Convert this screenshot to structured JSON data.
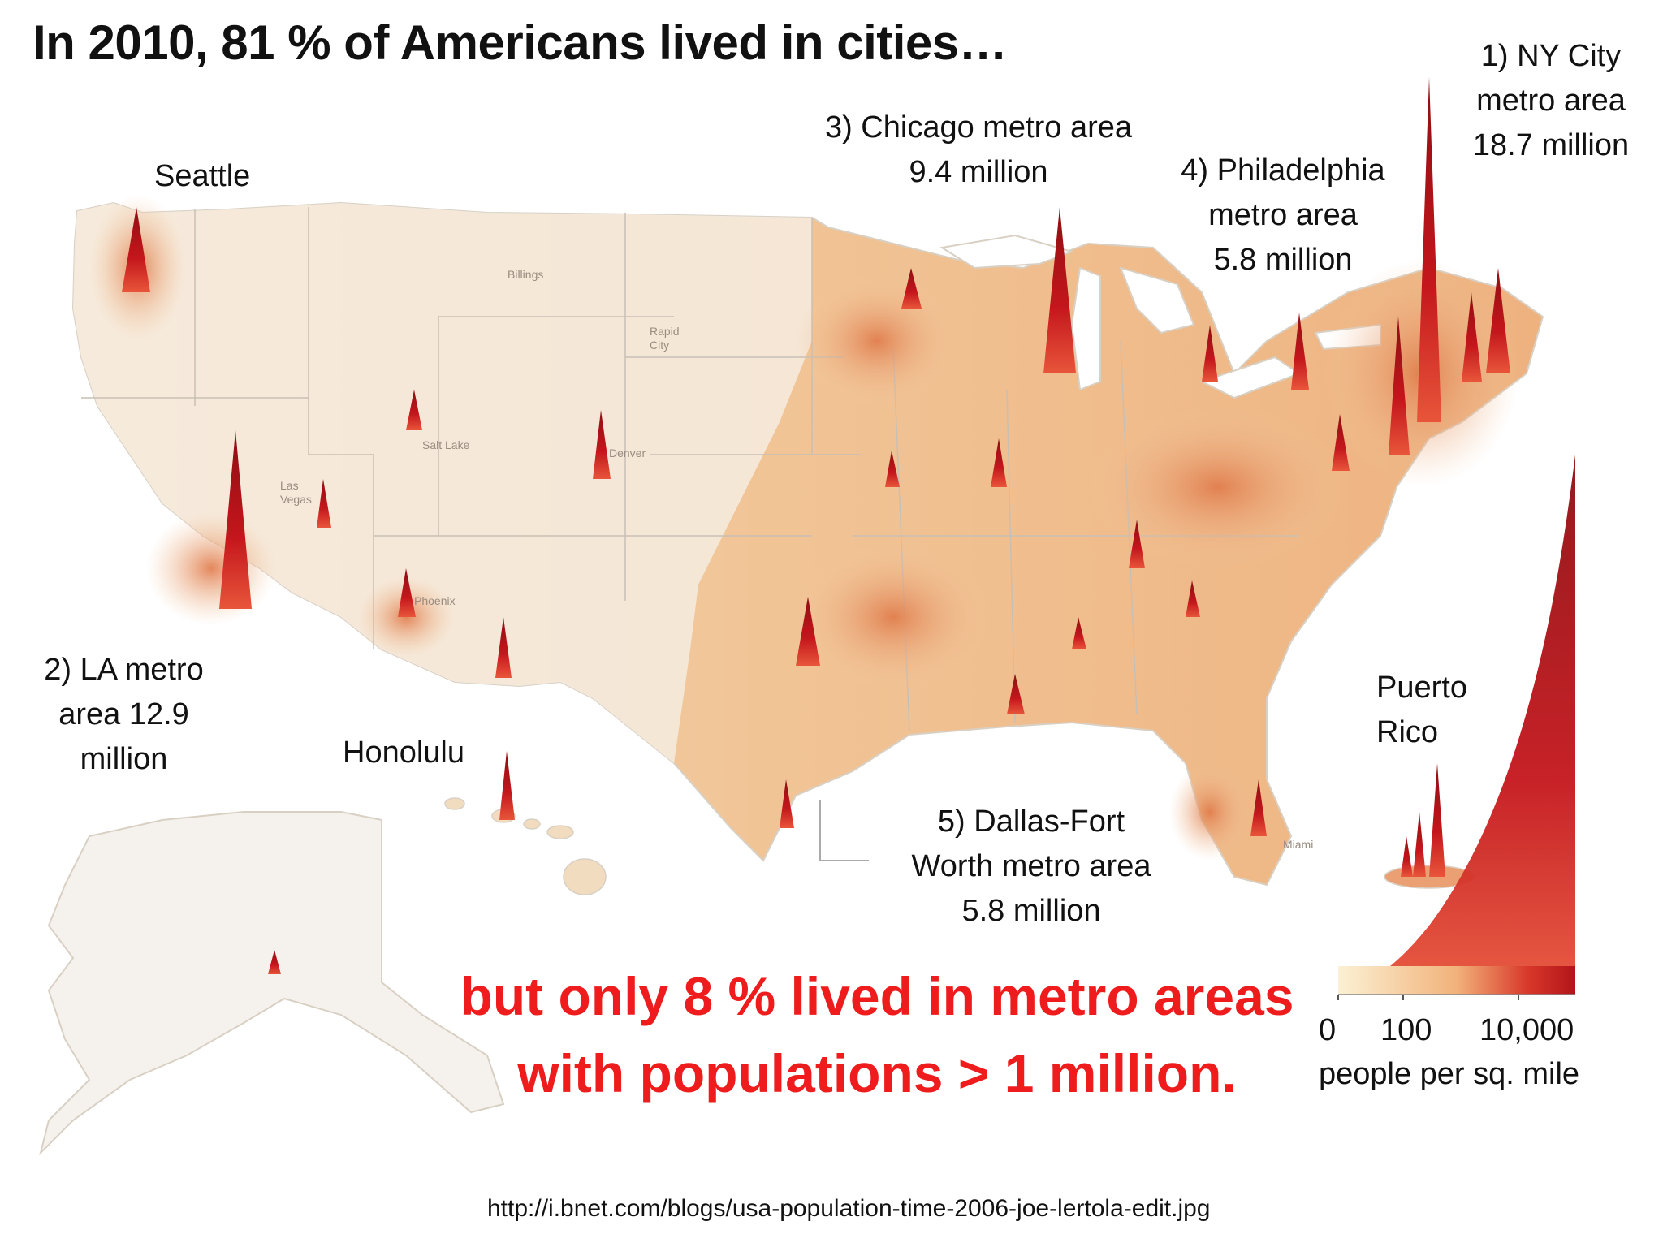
{
  "title": "In 2010, 81 % of Americans lived in cities…",
  "labels": {
    "seattle": "Seattle",
    "chicago_line1": "3) Chicago metro area",
    "chicago_line2": "9.4 million",
    "philly_line1": "4) Philadelphia",
    "philly_line2": "metro area",
    "philly_line3": "5.8 million",
    "ny_line1": "1) NY City",
    "ny_line2": "metro area",
    "ny_line3": "18.7 million",
    "la_line1": "2) LA metro",
    "la_line2": "area 12.9",
    "la_line3": "million",
    "honolulu": "Honolulu",
    "puerto_line1": "Puerto",
    "puerto_line2": "Rico",
    "dallas_line1": "5) Dallas-Fort",
    "dallas_line2": "Worth metro area",
    "dallas_line3": "5.8 million"
  },
  "map_place_names": {
    "billings": "Billings",
    "rapid": "Rapid",
    "city": "City",
    "salt_lake": "Salt Lake",
    "denver": "Denver",
    "las": "Las",
    "vegas": "Vegas",
    "phoenix": "Phoenix",
    "miami": "Miami"
  },
  "claim": {
    "line1": "but only 8 % lived in metro areas",
    "line2": "with populations > 1 million."
  },
  "legend": {
    "tick_0": "0",
    "tick_100": "100",
    "tick_10000": "10,000",
    "unit": "people per sq. mile",
    "color_low": "#f7e6b8",
    "color_high": "#c4161c"
  },
  "source": "http://i.bnet.com/blogs/usa-population-time-2006-joe-lertola-edit.jpg",
  "colors": {
    "land": "#f6e2c6",
    "land_dense": "#eeb07a",
    "spike": "#c4161c",
    "claim_red": "#ee1c1c"
  }
}
